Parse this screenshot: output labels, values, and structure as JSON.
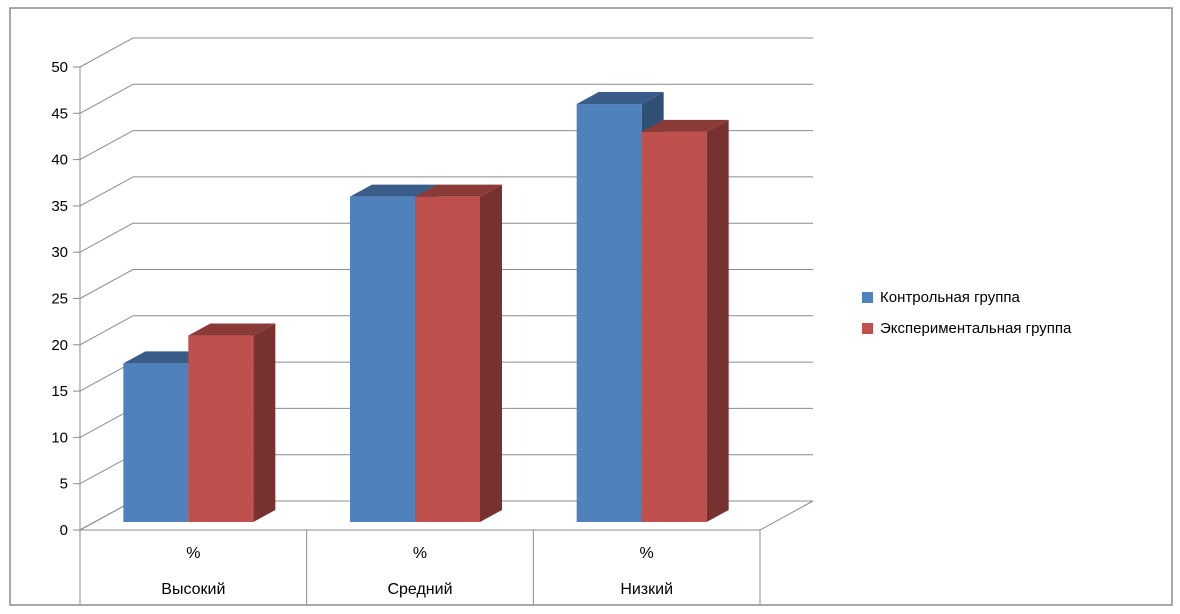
{
  "chart_data": {
    "type": "bar",
    "title": "",
    "xlabel": "",
    "ylabel": "",
    "ylim": [
      0,
      50
    ],
    "yticks": [
      0,
      5,
      10,
      15,
      20,
      25,
      30,
      35,
      40,
      45,
      50
    ],
    "grid": true,
    "legend_position": "right",
    "categories": [
      "Высокий",
      "Средний",
      "Низкий"
    ],
    "category_units": [
      "%",
      "%",
      "%"
    ],
    "series": [
      {
        "name": "Контрольная группа",
        "color": "#4F81BD",
        "values": [
          18,
          36,
          46
        ]
      },
      {
        "name": "Экспериментальная группа",
        "color": "#C0504D",
        "values": [
          21,
          36,
          43
        ]
      }
    ]
  }
}
